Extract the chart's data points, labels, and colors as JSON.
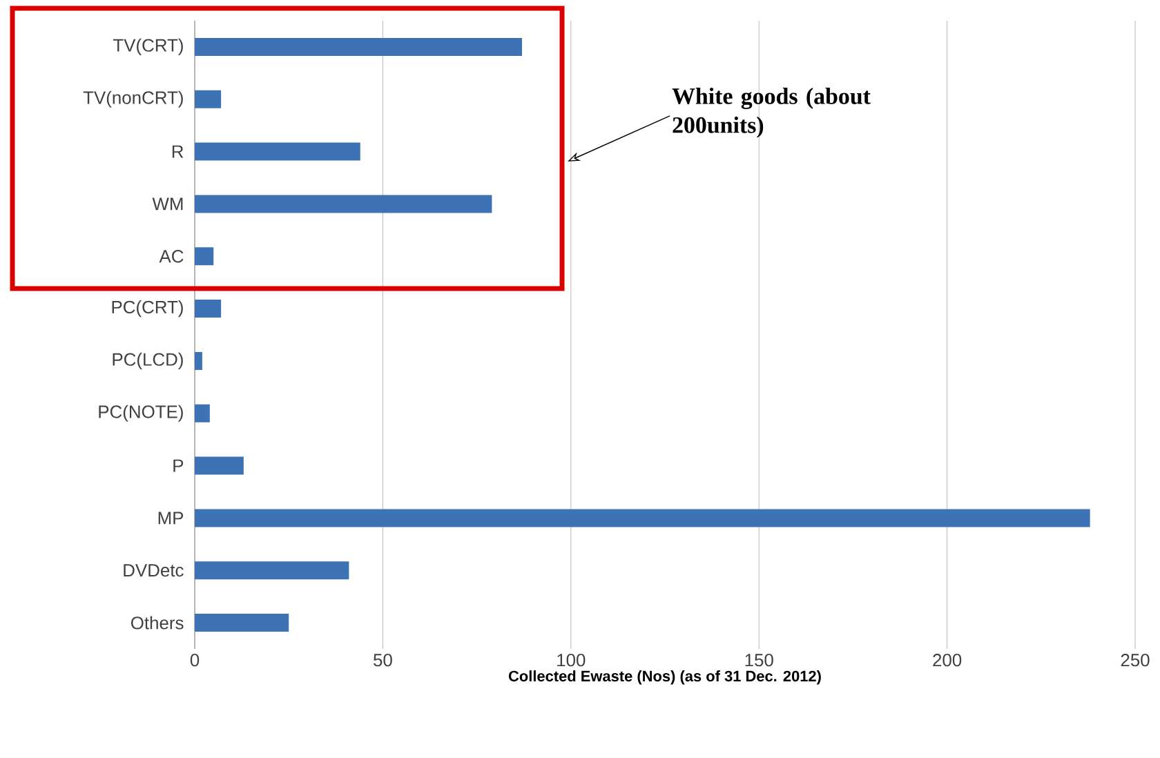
{
  "chart_data": {
    "type": "bar",
    "orientation": "horizontal",
    "xlabel": "Collected Ewaste (Nos) (as of 31 Dec. 2012)",
    "categories": [
      "TV(CRT)",
      "TV(nonCRT)",
      "R",
      "WM",
      "AC",
      "PC(CRT)",
      "PC(LCD)",
      "PC(NOTE)",
      "P",
      "MP",
      "DVDetc",
      "Others"
    ],
    "values": [
      87,
      7,
      44,
      79,
      5,
      7,
      2,
      4,
      13,
      238,
      41,
      25
    ],
    "color": "#3d72b4",
    "xlim": [
      0,
      250
    ],
    "xticks": [
      0,
      50,
      100,
      150,
      200,
      250
    ],
    "grid": "x",
    "annotations": [
      "White goods (about 200units)"
    ]
  }
}
